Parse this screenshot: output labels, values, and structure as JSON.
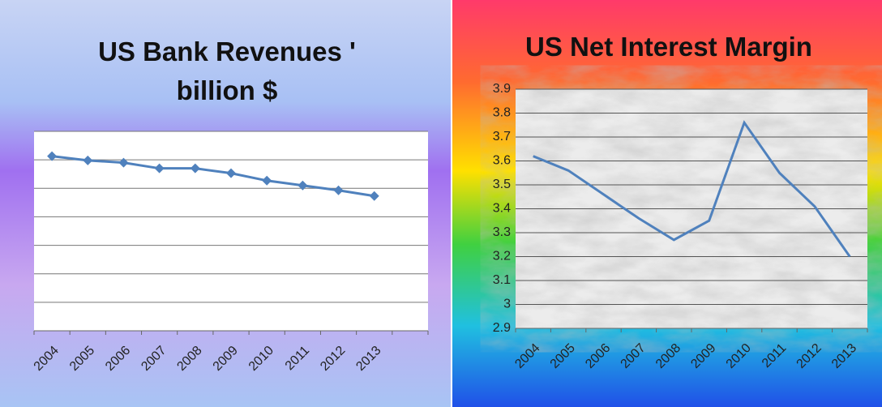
{
  "chart_data": [
    {
      "type": "line",
      "title": "US Bank Revenues ' billion $",
      "categories": [
        "2004",
        "2005",
        "2006",
        "2007",
        "2008",
        "2009",
        "2010",
        "2011",
        "2012",
        "2013"
      ],
      "series": [
        {
          "color": "#4f81bd",
          "values": [
            6.13,
            5.98,
            5.9,
            5.7,
            5.7,
            5.53,
            5.27,
            5.1,
            4.93,
            4.73
          ]
        }
      ],
      "marker": "diamond",
      "ylim": [
        0,
        7
      ],
      "yticks": [
        0,
        1,
        2,
        3,
        4,
        5,
        6,
        7
      ],
      "grid": true
    },
    {
      "type": "line",
      "title": "US Net Interest Margin",
      "categories": [
        "2004",
        "2005",
        "2006",
        "2007",
        "2008",
        "2009",
        "2010",
        "2011",
        "2012",
        "2013"
      ],
      "series": [
        {
          "color": "#4f81bd",
          "values": [
            3.62,
            3.56,
            3.46,
            3.36,
            3.27,
            3.35,
            3.76,
            3.55,
            3.41,
            3.2
          ]
        }
      ],
      "ylim": [
        2.9,
        3.9
      ],
      "yticks": [
        2.9,
        3,
        3.1,
        3.2,
        3.3,
        3.4,
        3.5,
        3.6,
        3.7,
        3.8,
        3.9
      ],
      "grid": true
    }
  ]
}
